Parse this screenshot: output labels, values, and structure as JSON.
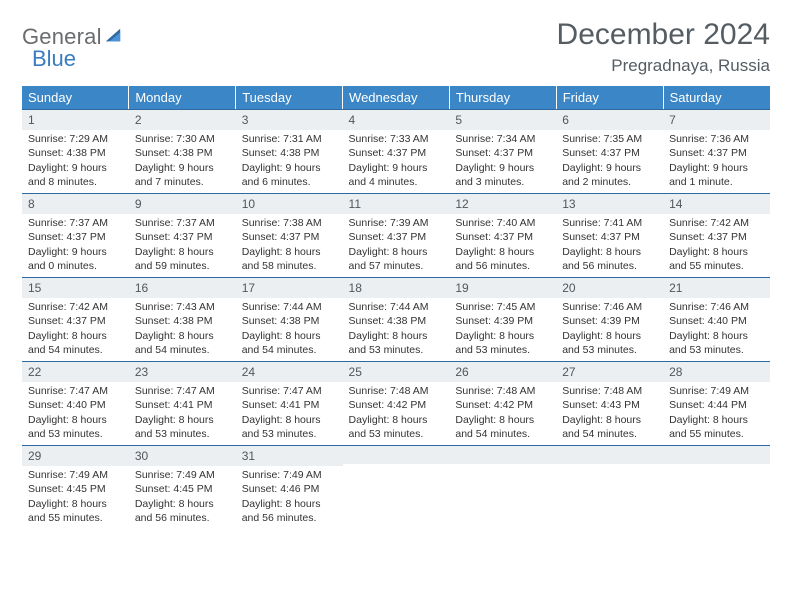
{
  "logo": {
    "word1": "General",
    "word2": "Blue"
  },
  "title": "December 2024",
  "location": "Pregradnaya, Russia",
  "colors": {
    "header_bg": "#3b86c6",
    "header_text": "#ffffff",
    "daynum_bg": "#eceff1",
    "daynum_border": "#2e6aa0",
    "text": "#333333",
    "title_text": "#555d63"
  },
  "weekdays": [
    "Sunday",
    "Monday",
    "Tuesday",
    "Wednesday",
    "Thursday",
    "Friday",
    "Saturday"
  ],
  "weeks": [
    [
      {
        "n": "1",
        "sr": "Sunrise: 7:29 AM",
        "ss": "Sunset: 4:38 PM",
        "dl": "Daylight: 9 hours and 8 minutes."
      },
      {
        "n": "2",
        "sr": "Sunrise: 7:30 AM",
        "ss": "Sunset: 4:38 PM",
        "dl": "Daylight: 9 hours and 7 minutes."
      },
      {
        "n": "3",
        "sr": "Sunrise: 7:31 AM",
        "ss": "Sunset: 4:38 PM",
        "dl": "Daylight: 9 hours and 6 minutes."
      },
      {
        "n": "4",
        "sr": "Sunrise: 7:33 AM",
        "ss": "Sunset: 4:37 PM",
        "dl": "Daylight: 9 hours and 4 minutes."
      },
      {
        "n": "5",
        "sr": "Sunrise: 7:34 AM",
        "ss": "Sunset: 4:37 PM",
        "dl": "Daylight: 9 hours and 3 minutes."
      },
      {
        "n": "6",
        "sr": "Sunrise: 7:35 AM",
        "ss": "Sunset: 4:37 PM",
        "dl": "Daylight: 9 hours and 2 minutes."
      },
      {
        "n": "7",
        "sr": "Sunrise: 7:36 AM",
        "ss": "Sunset: 4:37 PM",
        "dl": "Daylight: 9 hours and 1 minute."
      }
    ],
    [
      {
        "n": "8",
        "sr": "Sunrise: 7:37 AM",
        "ss": "Sunset: 4:37 PM",
        "dl": "Daylight: 9 hours and 0 minutes."
      },
      {
        "n": "9",
        "sr": "Sunrise: 7:37 AM",
        "ss": "Sunset: 4:37 PM",
        "dl": "Daylight: 8 hours and 59 minutes."
      },
      {
        "n": "10",
        "sr": "Sunrise: 7:38 AM",
        "ss": "Sunset: 4:37 PM",
        "dl": "Daylight: 8 hours and 58 minutes."
      },
      {
        "n": "11",
        "sr": "Sunrise: 7:39 AM",
        "ss": "Sunset: 4:37 PM",
        "dl": "Daylight: 8 hours and 57 minutes."
      },
      {
        "n": "12",
        "sr": "Sunrise: 7:40 AM",
        "ss": "Sunset: 4:37 PM",
        "dl": "Daylight: 8 hours and 56 minutes."
      },
      {
        "n": "13",
        "sr": "Sunrise: 7:41 AM",
        "ss": "Sunset: 4:37 PM",
        "dl": "Daylight: 8 hours and 56 minutes."
      },
      {
        "n": "14",
        "sr": "Sunrise: 7:42 AM",
        "ss": "Sunset: 4:37 PM",
        "dl": "Daylight: 8 hours and 55 minutes."
      }
    ],
    [
      {
        "n": "15",
        "sr": "Sunrise: 7:42 AM",
        "ss": "Sunset: 4:37 PM",
        "dl": "Daylight: 8 hours and 54 minutes."
      },
      {
        "n": "16",
        "sr": "Sunrise: 7:43 AM",
        "ss": "Sunset: 4:38 PM",
        "dl": "Daylight: 8 hours and 54 minutes."
      },
      {
        "n": "17",
        "sr": "Sunrise: 7:44 AM",
        "ss": "Sunset: 4:38 PM",
        "dl": "Daylight: 8 hours and 54 minutes."
      },
      {
        "n": "18",
        "sr": "Sunrise: 7:44 AM",
        "ss": "Sunset: 4:38 PM",
        "dl": "Daylight: 8 hours and 53 minutes."
      },
      {
        "n": "19",
        "sr": "Sunrise: 7:45 AM",
        "ss": "Sunset: 4:39 PM",
        "dl": "Daylight: 8 hours and 53 minutes."
      },
      {
        "n": "20",
        "sr": "Sunrise: 7:46 AM",
        "ss": "Sunset: 4:39 PM",
        "dl": "Daylight: 8 hours and 53 minutes."
      },
      {
        "n": "21",
        "sr": "Sunrise: 7:46 AM",
        "ss": "Sunset: 4:40 PM",
        "dl": "Daylight: 8 hours and 53 minutes."
      }
    ],
    [
      {
        "n": "22",
        "sr": "Sunrise: 7:47 AM",
        "ss": "Sunset: 4:40 PM",
        "dl": "Daylight: 8 hours and 53 minutes."
      },
      {
        "n": "23",
        "sr": "Sunrise: 7:47 AM",
        "ss": "Sunset: 4:41 PM",
        "dl": "Daylight: 8 hours and 53 minutes."
      },
      {
        "n": "24",
        "sr": "Sunrise: 7:47 AM",
        "ss": "Sunset: 4:41 PM",
        "dl": "Daylight: 8 hours and 53 minutes."
      },
      {
        "n": "25",
        "sr": "Sunrise: 7:48 AM",
        "ss": "Sunset: 4:42 PM",
        "dl": "Daylight: 8 hours and 53 minutes."
      },
      {
        "n": "26",
        "sr": "Sunrise: 7:48 AM",
        "ss": "Sunset: 4:42 PM",
        "dl": "Daylight: 8 hours and 54 minutes."
      },
      {
        "n": "27",
        "sr": "Sunrise: 7:48 AM",
        "ss": "Sunset: 4:43 PM",
        "dl": "Daylight: 8 hours and 54 minutes."
      },
      {
        "n": "28",
        "sr": "Sunrise: 7:49 AM",
        "ss": "Sunset: 4:44 PM",
        "dl": "Daylight: 8 hours and 55 minutes."
      }
    ],
    [
      {
        "n": "29",
        "sr": "Sunrise: 7:49 AM",
        "ss": "Sunset: 4:45 PM",
        "dl": "Daylight: 8 hours and 55 minutes."
      },
      {
        "n": "30",
        "sr": "Sunrise: 7:49 AM",
        "ss": "Sunset: 4:45 PM",
        "dl": "Daylight: 8 hours and 56 minutes."
      },
      {
        "n": "31",
        "sr": "Sunrise: 7:49 AM",
        "ss": "Sunset: 4:46 PM",
        "dl": "Daylight: 8 hours and 56 minutes."
      },
      null,
      null,
      null,
      null
    ]
  ]
}
